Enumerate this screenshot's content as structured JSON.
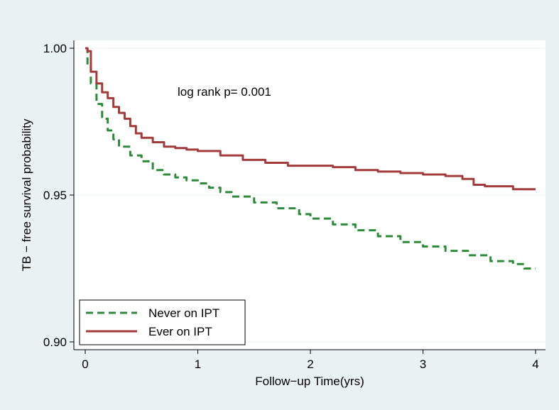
{
  "chart_data": {
    "type": "line",
    "title": "",
    "xlabel": "Follow−up Time(yrs)",
    "ylabel": "TB − free survival probability",
    "xlim": [
      0,
      4
    ],
    "ylim": [
      0.9,
      1.0
    ],
    "x_ticks": [
      0,
      1,
      2,
      3,
      4
    ],
    "x_tick_labels": [
      "0",
      "1",
      "2",
      "3",
      "4"
    ],
    "y_ticks": [
      0.9,
      0.95,
      1.0
    ],
    "y_tick_labels": [
      "0.90",
      "0.95",
      "1.00"
    ],
    "grid": "horizontal",
    "legend_position": "bottom-left",
    "annotation": "log rank p= 0.001",
    "series": [
      {
        "name": "Never on IPT",
        "color": "#2e8b3a",
        "style": "dashed",
        "x": [
          0,
          0.02,
          0.05,
          0.1,
          0.15,
          0.2,
          0.25,
          0.3,
          0.4,
          0.5,
          0.6,
          0.7,
          0.8,
          0.9,
          1.0,
          1.1,
          1.2,
          1.3,
          1.5,
          1.7,
          1.9,
          2.0,
          2.2,
          2.4,
          2.6,
          2.8,
          3.0,
          3.2,
          3.4,
          3.6,
          3.8,
          3.9,
          4.0
        ],
        "y": [
          1.0,
          0.994,
          0.988,
          0.981,
          0.976,
          0.972,
          0.969,
          0.9665,
          0.9635,
          0.9615,
          0.9585,
          0.957,
          0.956,
          0.955,
          0.954,
          0.9525,
          0.951,
          0.9495,
          0.9475,
          0.9455,
          0.9435,
          0.942,
          0.94,
          0.938,
          0.936,
          0.934,
          0.9325,
          0.931,
          0.9295,
          0.9275,
          0.9265,
          0.925,
          0.925
        ]
      },
      {
        "name": "Ever on IPT",
        "color": "#a33b3b",
        "style": "solid",
        "x": [
          0,
          0.02,
          0.05,
          0.1,
          0.15,
          0.2,
          0.25,
          0.3,
          0.35,
          0.4,
          0.45,
          0.5,
          0.6,
          0.7,
          0.8,
          0.9,
          1.0,
          1.2,
          1.4,
          1.6,
          1.8,
          2.0,
          2.2,
          2.4,
          2.6,
          2.8,
          3.0,
          3.2,
          3.35,
          3.45,
          3.55,
          3.7,
          3.8,
          4.0
        ],
        "y": [
          1.0,
          0.999,
          0.992,
          0.988,
          0.985,
          0.983,
          0.98,
          0.978,
          0.976,
          0.9735,
          0.971,
          0.9695,
          0.968,
          0.9665,
          0.966,
          0.9655,
          0.965,
          0.9635,
          0.962,
          0.961,
          0.96,
          0.96,
          0.9595,
          0.9585,
          0.958,
          0.9575,
          0.957,
          0.9565,
          0.9555,
          0.9535,
          0.953,
          0.953,
          0.952,
          0.952
        ]
      }
    ]
  }
}
